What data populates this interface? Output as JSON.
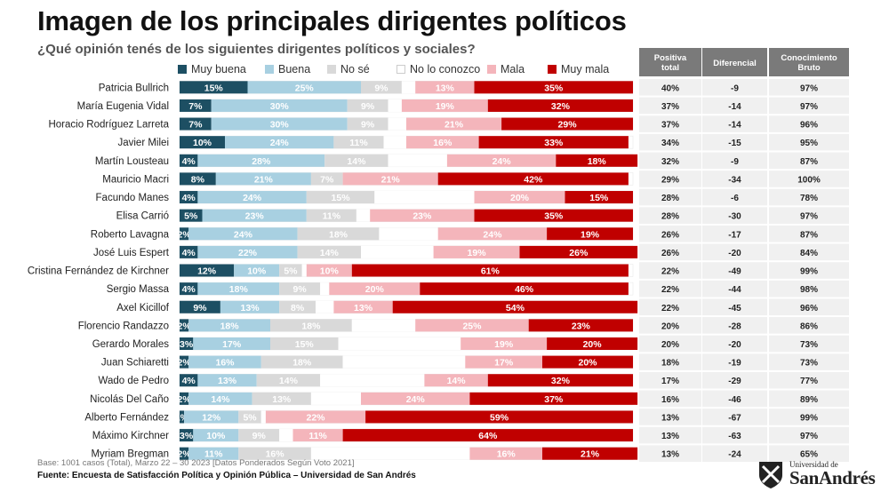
{
  "title": "Imagen de los principales dirigentes políticos",
  "subtitle": "¿Qué opinión tenés de los siguientes dirigentes políticos y sociales?",
  "footnote": "Base: 1001 casos (Total), Marzo 22 – 30 2023 [Datos Ponderados Según Voto 2021]",
  "source": "Fuente: Encuesta de Satisfacción Política y Opinión Pública – Universidad de San Andrés",
  "logo": {
    "small": "Universidad de",
    "big": "SanAndrés"
  },
  "colors": {
    "muy_buena": "#1d4f63",
    "buena": "#a8d0e1",
    "no_se": "#d9d9d9",
    "no_lo_conozco": "#ffffff",
    "mala": "#f4b5bb",
    "muy_mala": "#c00000",
    "header_bg": "#7a7a7a",
    "table_bg": "#f0f0f0"
  },
  "legend": [
    {
      "key": "muy_buena",
      "label": "Muy buena"
    },
    {
      "key": "buena",
      "label": "Buena"
    },
    {
      "key": "no_se",
      "label": "No sé"
    },
    {
      "key": "no_lo_conozco",
      "label": "No lo conozco"
    },
    {
      "key": "mala",
      "label": "Mala"
    },
    {
      "key": "muy_mala",
      "label": "Muy mala"
    }
  ],
  "chart_data": {
    "type": "bar",
    "orientation": "horizontal",
    "stacked": true,
    "title": "Imagen de los principales dirigentes políticos",
    "categories": [
      "Patricia Bullrich",
      "María Eugenia Vidal",
      "Horacio Rodríguez Larreta",
      "Javier Milei",
      "Martín Lousteau",
      "Mauricio Macri",
      "Facundo Manes",
      "Elisa Carrió",
      "Roberto Lavagna",
      "José Luis Espert",
      "Cristina Fernández de Kirchner",
      "Sergio Massa",
      "Axel Kicillof",
      "Florencio Randazzo",
      "Gerardo Morales",
      "Juan Schiaretti",
      "Wado de Pedro",
      "Nicolás Del Caño",
      "Alberto Fernández",
      "Máximo Kirchner",
      "Myriam Bregman"
    ],
    "series": [
      {
        "name": "Muy buena",
        "values": [
          15,
          7,
          7,
          10,
          4,
          8,
          4,
          5,
          2,
          4,
          12,
          4,
          9,
          2,
          3,
          2,
          4,
          2,
          1,
          3,
          2
        ]
      },
      {
        "name": "Buena",
        "values": [
          25,
          30,
          30,
          24,
          28,
          21,
          24,
          23,
          24,
          22,
          10,
          18,
          13,
          18,
          17,
          16,
          13,
          14,
          12,
          10,
          11
        ]
      },
      {
        "name": "No sé",
        "values": [
          9,
          9,
          9,
          11,
          14,
          7,
          15,
          11,
          18,
          14,
          5,
          9,
          8,
          18,
          15,
          18,
          14,
          13,
          5,
          9,
          16
        ]
      },
      {
        "name": "No lo conozco",
        "values": [
          3,
          3,
          4,
          5,
          13,
          0,
          22,
          3,
          13,
          16,
          1,
          2,
          4,
          14,
          27,
          27,
          23,
          11,
          1,
          3,
          35
        ]
      },
      {
        "name": "Mala",
        "values": [
          13,
          19,
          21,
          16,
          24,
          21,
          20,
          23,
          24,
          19,
          10,
          20,
          13,
          25,
          19,
          17,
          14,
          24,
          22,
          11,
          16
        ]
      },
      {
        "name": "Muy mala",
        "values": [
          35,
          32,
          29,
          33,
          18,
          42,
          15,
          35,
          19,
          26,
          61,
          46,
          54,
          23,
          20,
          20,
          32,
          37,
          59,
          64,
          21
        ]
      }
    ],
    "labels": [
      [
        "15%",
        "25%",
        "9%",
        "",
        "13%",
        "35%"
      ],
      [
        "7%",
        "30%",
        "9%",
        "",
        "19%",
        "32%"
      ],
      [
        "7%",
        "30%",
        "9%",
        "",
        "21%",
        "29%"
      ],
      [
        "10%",
        "24%",
        "11%",
        "",
        "16%",
        "33%"
      ],
      [
        "4%",
        "28%",
        "14%",
        "",
        "24%",
        "18%"
      ],
      [
        "8%",
        "21%",
        "7%",
        "",
        "21%",
        "42%"
      ],
      [
        "4%",
        "24%",
        "15%",
        "",
        "20%",
        "15%"
      ],
      [
        "5%",
        "23%",
        "11%",
        "",
        "23%",
        "35%"
      ],
      [
        "2%",
        "24%",
        "18%",
        "",
        "24%",
        "19%"
      ],
      [
        "4%",
        "22%",
        "14%",
        "",
        "19%",
        "26%"
      ],
      [
        "12%",
        "10%",
        "5%",
        "",
        "10%",
        "61%"
      ],
      [
        "4%",
        "18%",
        "9%",
        "",
        "20%",
        "46%"
      ],
      [
        "9%",
        "13%",
        "8%",
        "",
        "13%",
        "54%"
      ],
      [
        "2%",
        "18%",
        "18%",
        "",
        "25%",
        "23%"
      ],
      [
        "3%",
        "17%",
        "15%",
        "",
        "19%",
        "20%"
      ],
      [
        "2%",
        "16%",
        "18%",
        "",
        "17%",
        "20%"
      ],
      [
        "4%",
        "13%",
        "14%",
        "",
        "14%",
        "32%"
      ],
      [
        "2%",
        "14%",
        "13%",
        "",
        "24%",
        "37%"
      ],
      [
        "1%",
        "12%",
        "5%",
        "",
        "22%",
        "59%"
      ],
      [
        "3%",
        "10%",
        "9%",
        "",
        "11%",
        "64%"
      ],
      [
        "2%",
        "11%",
        "16%",
        "",
        "16%",
        "21%"
      ]
    ],
    "xlim": [
      0,
      100
    ],
    "xlabel": "",
    "ylabel": "",
    "grid": false,
    "legend_position": "top",
    "table": {
      "headers": [
        "Positiva total",
        "Diferencial",
        "Conocimiento Bruto"
      ],
      "rows": [
        [
          "40%",
          "-9",
          "97%"
        ],
        [
          "37%",
          "-14",
          "97%"
        ],
        [
          "37%",
          "-14",
          "96%"
        ],
        [
          "34%",
          "-15",
          "95%"
        ],
        [
          "32%",
          "-9",
          "87%"
        ],
        [
          "29%",
          "-34",
          "100%"
        ],
        [
          "28%",
          "-6",
          "78%"
        ],
        [
          "28%",
          "-30",
          "97%"
        ],
        [
          "26%",
          "-17",
          "87%"
        ],
        [
          "26%",
          "-20",
          "84%"
        ],
        [
          "22%",
          "-49",
          "99%"
        ],
        [
          "22%",
          "-44",
          "98%"
        ],
        [
          "22%",
          "-45",
          "96%"
        ],
        [
          "20%",
          "-28",
          "86%"
        ],
        [
          "20%",
          "-20",
          "73%"
        ],
        [
          "18%",
          "-19",
          "73%"
        ],
        [
          "17%",
          "-29",
          "77%"
        ],
        [
          "16%",
          "-46",
          "89%"
        ],
        [
          "13%",
          "-67",
          "99%"
        ],
        [
          "13%",
          "-63",
          "97%"
        ],
        [
          "13%",
          "-24",
          "65%"
        ]
      ]
    }
  }
}
